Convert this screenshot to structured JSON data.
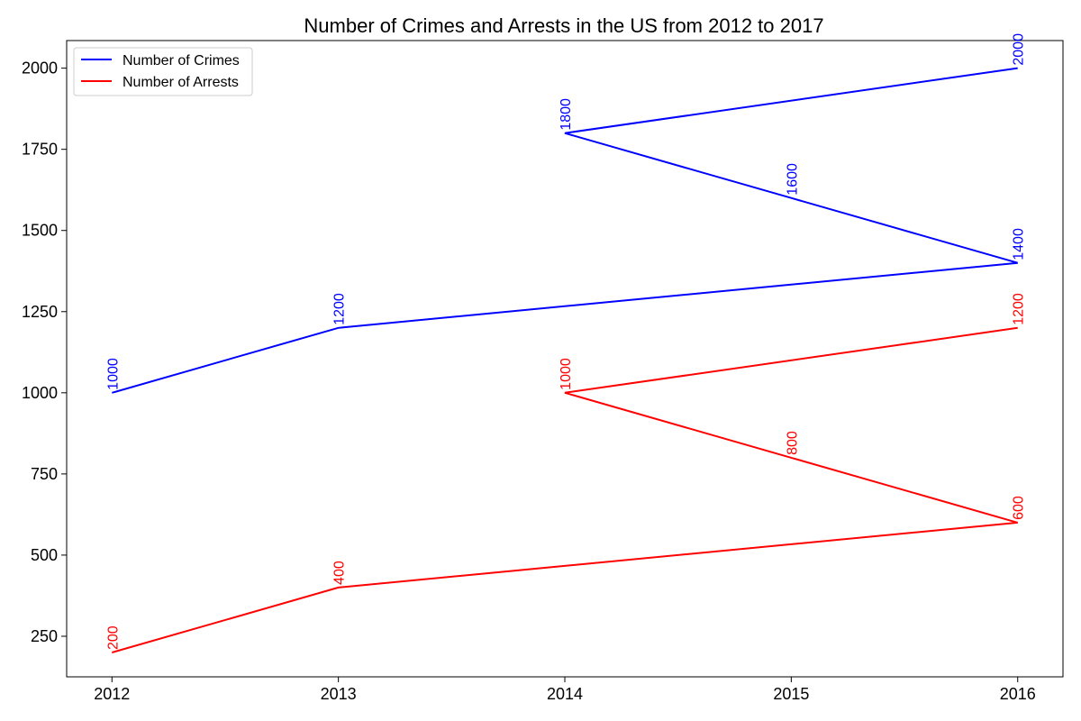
{
  "chart_data": {
    "type": "line",
    "title": "Number of Crimes and Arrests in the US from 2012 to 2017",
    "xlabel": "",
    "ylabel": "",
    "x": [
      "2012",
      "2013",
      "2014",
      "2016",
      "2015",
      "2016"
    ],
    "x_ticks": [
      "2012",
      "2013",
      "2014",
      "2015",
      "2016"
    ],
    "y_ticks": [
      250,
      500,
      750,
      1000,
      1250,
      1500,
      1750,
      2000
    ],
    "xlim": [
      2011.8,
      2016.2
    ],
    "ylim": [
      125,
      2085
    ],
    "grid": false,
    "legend": "upper-left",
    "series": [
      {
        "name": "Number of Crimes",
        "color": "#0000ff",
        "x": [
          2012,
          2013,
          2016,
          2015,
          2014,
          2016
        ],
        "values": [
          1000,
          1200,
          1400,
          1600,
          1800,
          2000
        ],
        "labels": [
          "1000",
          "1200",
          "1400",
          "1600",
          "1800",
          "2000"
        ]
      },
      {
        "name": "Number of Arrests",
        "color": "#ff0000",
        "x": [
          2012,
          2013,
          2016,
          2015,
          2014,
          2016
        ],
        "values": [
          200,
          400,
          600,
          800,
          1000,
          1200
        ],
        "labels": [
          "200",
          "400",
          "600",
          "800",
          "1000",
          "1200"
        ]
      }
    ]
  }
}
